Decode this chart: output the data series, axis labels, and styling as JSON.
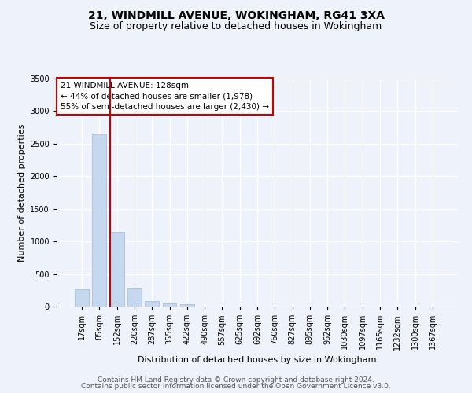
{
  "title": "21, WINDMILL AVENUE, WOKINGHAM, RG41 3XA",
  "subtitle": "Size of property relative to detached houses in Wokingham",
  "xlabel": "Distribution of detached houses by size in Wokingham",
  "ylabel": "Number of detached properties",
  "categories": [
    "17sqm",
    "85sqm",
    "152sqm",
    "220sqm",
    "287sqm",
    "355sqm",
    "422sqm",
    "490sqm",
    "557sqm",
    "625sqm",
    "692sqm",
    "760sqm",
    "827sqm",
    "895sqm",
    "962sqm",
    "1030sqm",
    "1097sqm",
    "1165sqm",
    "1232sqm",
    "1300sqm",
    "1367sqm"
  ],
  "values": [
    270,
    2640,
    1150,
    280,
    90,
    45,
    35,
    0,
    0,
    0,
    0,
    0,
    0,
    0,
    0,
    0,
    0,
    0,
    0,
    0,
    0
  ],
  "bar_color": "#c5d8f0",
  "bar_edge_color": "#a0b8d8",
  "vline_x": 1.6,
  "vline_color": "#cc0000",
  "ylim": [
    0,
    3500
  ],
  "yticks": [
    0,
    500,
    1000,
    1500,
    2000,
    2500,
    3000,
    3500
  ],
  "annotation_text": "21 WINDMILL AVENUE: 128sqm\n← 44% of detached houses are smaller (1,978)\n55% of semi-detached houses are larger (2,430) →",
  "annotation_box_color": "#ffffff",
  "annotation_border_color": "#cc0000",
  "footer_line1": "Contains HM Land Registry data © Crown copyright and database right 2024.",
  "footer_line2": "Contains public sector information licensed under the Open Government Licence v3.0.",
  "background_color": "#eef2fa",
  "grid_color": "#ffffff",
  "title_fontsize": 10,
  "subtitle_fontsize": 9,
  "axis_label_fontsize": 8,
  "tick_fontsize": 7,
  "annotation_fontsize": 7.5,
  "footer_fontsize": 6.5
}
